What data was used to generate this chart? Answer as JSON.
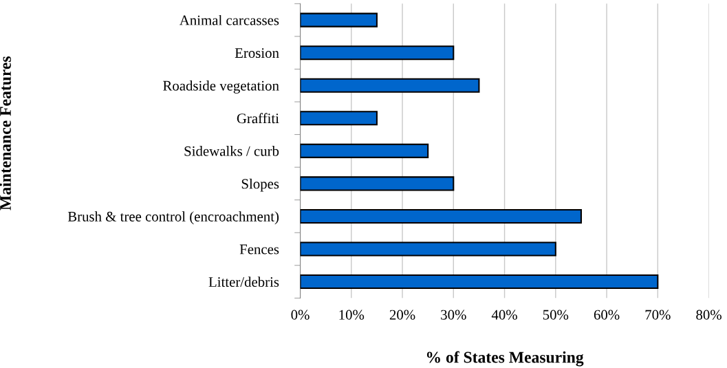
{
  "chart_data": {
    "type": "bar",
    "orientation": "horizontal",
    "xlabel": "% of States Measuring",
    "ylabel": "Maintenance Features",
    "categories": [
      "Animal carcasses",
      "Erosion",
      "Roadside vegetation",
      "Graffiti",
      "Sidewalks / curb",
      "Slopes",
      "Brush & tree control (encroachment)",
      "Fences",
      "Litter/debris"
    ],
    "values": [
      15,
      30,
      35,
      15,
      25,
      30,
      55,
      50,
      70
    ],
    "color": "#0066cc",
    "xlim": [
      0,
      80
    ],
    "xticks": [
      {
        "value": 0,
        "label": "0%"
      },
      {
        "value": 10,
        "label": "10%"
      },
      {
        "value": 20,
        "label": "20%"
      },
      {
        "value": 30,
        "label": "30%"
      },
      {
        "value": 40,
        "label": "40%"
      },
      {
        "value": 50,
        "label": "50%"
      },
      {
        "value": 60,
        "label": "60%"
      },
      {
        "value": 70,
        "label": "70%"
      },
      {
        "value": 80,
        "label": "80%"
      }
    ],
    "grid": "x",
    "legend": false
  }
}
